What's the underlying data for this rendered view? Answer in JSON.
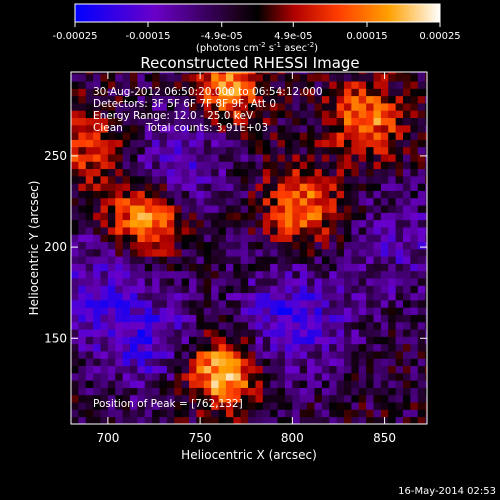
{
  "chart_data": {
    "type": "heatmap",
    "title": "Reconstructed RHESSI Image",
    "xlabel": "Heliocentric X (arcsec)",
    "ylabel": "Heliocentric Y (arcsec)",
    "xlim": [
      680,
      873
    ],
    "ylim": [
      103,
      296
    ],
    "xticks": [
      700,
      750,
      800,
      850
    ],
    "yticks": [
      150,
      200,
      250
    ],
    "grid": false,
    "colorbar": {
      "placement": "top",
      "ticks": [
        "-0.00025",
        "-0.00015",
        "-4.9e-05",
        "4.9e-05",
        "0.00015",
        "0.00025"
      ],
      "tick_values": [
        -0.00025,
        -0.00015,
        -4.9e-05,
        4.9e-05,
        0.00015,
        0.00025
      ],
      "range": [
        -0.00025,
        0.00025
      ],
      "units_main": "(photons cm",
      "units_exp1": "-2",
      "units_s": " s",
      "units_exp2": "-1",
      "units_asec": " asec",
      "units_exp3": "-2",
      "units_close": ")",
      "colors": [
        "#0000ff",
        "#6a00c8",
        "#1a001a",
        "#000000",
        "#b00000",
        "#ff3c00",
        "#ffa000",
        "#ffffff"
      ]
    },
    "annotations": {
      "time_range": "30-Aug-2012 06:50:20.000 to 06:54:12.000",
      "detectors": "Detectors: 3F 5F 6F 7F 8F 9F, Att 0",
      "energy": "Energy Range: 12.0 - 25.0 keV",
      "algorithm": "Clean",
      "counts": "Total counts: 3.91E+03",
      "peak": "Position of Peak = [762,132]"
    },
    "peak_position": [
      762,
      132
    ],
    "bright_regions": [
      {
        "x": 762,
        "y": 132,
        "level": 1.0
      },
      {
        "x": 720,
        "y": 216,
        "level": 0.85
      },
      {
        "x": 840,
        "y": 270,
        "level": 0.75
      },
      {
        "x": 765,
        "y": 286,
        "level": 0.78
      },
      {
        "x": 805,
        "y": 222,
        "level": 0.72
      },
      {
        "x": 690,
        "y": 255,
        "level": 0.55
      }
    ],
    "dark_regions": [
      {
        "x": 800,
        "y": 160,
        "level": -0.6
      },
      {
        "x": 720,
        "y": 150,
        "level": -0.5
      },
      {
        "x": 738,
        "y": 248,
        "level": -0.45
      },
      {
        "x": 690,
        "y": 180,
        "level": -0.4
      },
      {
        "x": 860,
        "y": 200,
        "level": -0.35
      }
    ]
  },
  "footer": {
    "timestamp": "16-May-2014 02:53"
  }
}
